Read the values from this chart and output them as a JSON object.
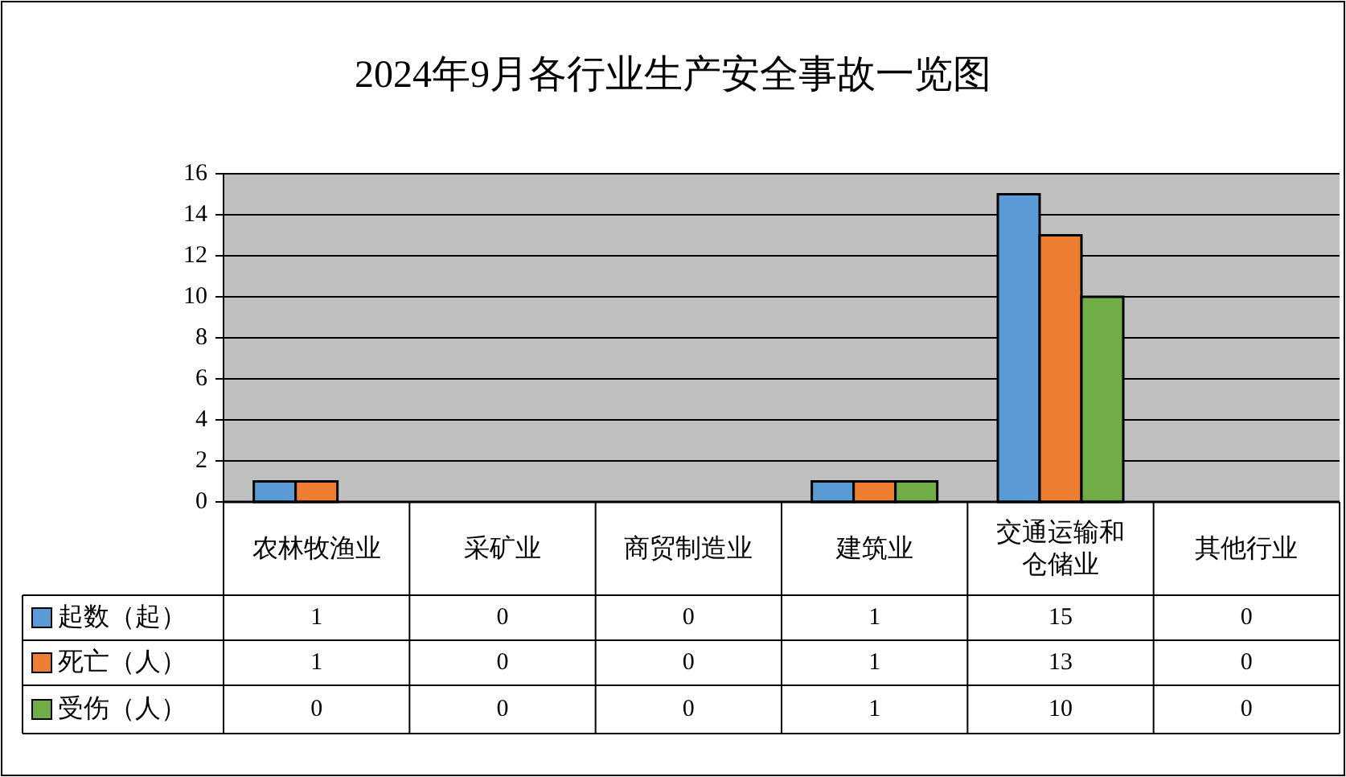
{
  "chart_data": {
    "type": "bar",
    "title": "2024年9月各行业生产安全事故一览图",
    "categories": [
      "农林牧渔业",
      "采矿业",
      "商贸制造业",
      "建筑业",
      "交通运输和仓储业",
      "其他行业"
    ],
    "series": [
      {
        "name": "起数（起）",
        "color": "#5b9bd5",
        "values": [
          1,
          0,
          0,
          1,
          15,
          0
        ]
      },
      {
        "name": "死亡（人）",
        "color": "#ed7d31",
        "values": [
          1,
          0,
          0,
          1,
          13,
          0
        ]
      },
      {
        "name": "受伤（人）",
        "color": "#70ad47",
        "values": [
          0,
          0,
          0,
          1,
          10,
          0
        ]
      }
    ],
    "ylim": [
      0,
      16
    ],
    "yticks": [
      0,
      2,
      4,
      6,
      8,
      10,
      12,
      14,
      16
    ],
    "grid": "y",
    "legend": "bottom",
    "data_labels": true
  }
}
